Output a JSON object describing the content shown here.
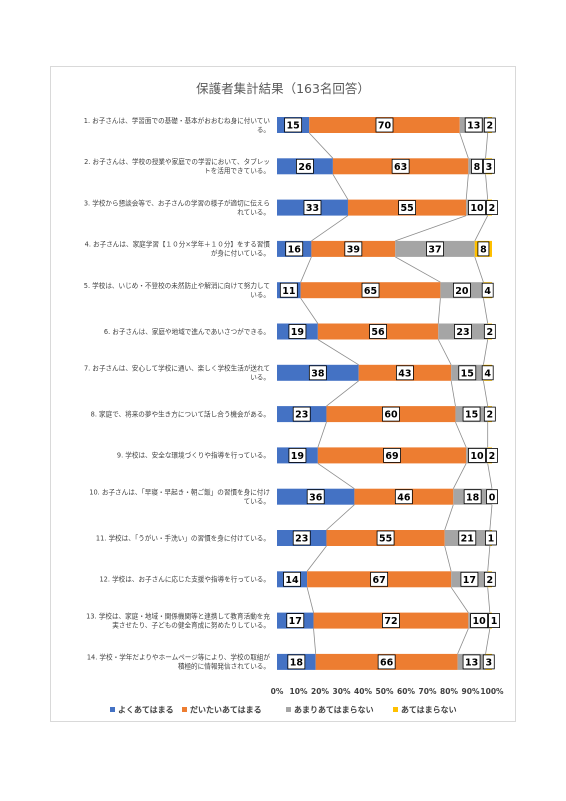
{
  "chart_data": {
    "type": "bar",
    "orientation": "horizontal",
    "stacked": "percent",
    "title": "保護者集計結果（163名回答）",
    "xlim": [
      0,
      100
    ],
    "x_ticks": [
      "0%",
      "10%",
      "20%",
      "30%",
      "40%",
      "50%",
      "60%",
      "70%",
      "80%",
      "90%",
      "100%"
    ],
    "legend_position": "bottom",
    "grid": false,
    "categories": [
      [
        "1. お子さんは、学習面での基礎・基本がおおむね身に付いてい",
        "る。"
      ],
      [
        "2. お子さんは、学校の授業や家庭での学習において、タブレッ",
        "トを活用できている。"
      ],
      [
        "3. 学校から懇談会等で、お子さんの学習の様子が適切に伝えら",
        "れている。"
      ],
      [
        "4. お子さんは、家庭学習【１０分×学年＋１０分】をする習慣",
        "が身に付いている。"
      ],
      [
        "5. 学校は、いじめ・不登校の未然防止や解消に向けて努力して",
        "いる。"
      ],
      [
        "6. お子さんは、家庭や地域で進んであいさつができる。"
      ],
      [
        "7. お子さんは、安心して学校に通い、楽しく学校生活が送れて",
        "いる。"
      ],
      [
        "8. 家庭で、将来の夢や生き方について話し合う機会がある。"
      ],
      [
        "9. 学校は、安全な環境づくりや指導を行っている。"
      ],
      [
        "10. お子さんは、「早寝・早起き・朝ご飯」の習慣を身に付け",
        "ている。"
      ],
      [
        "11. 学校は、「うがい・手洗い」の習慣を身に付けている。"
      ],
      [
        "12. 学校は、お子さんに応じた支援や指導を行っている。"
      ],
      [
        "13. 学校は、家庭・地域・関係機関等と連携して教育活動を充",
        "実させたり、子どもの健全育成に努めたりしている。"
      ],
      [
        "14. 学校・学年だよりやホームページ等により、学校の取組が",
        "積極的に情報発信されている。"
      ]
    ],
    "series": [
      {
        "name": "よくあてはまる",
        "color": "#4472c4",
        "values": [
          15,
          26,
          33,
          16,
          11,
          19,
          38,
          23,
          19,
          36,
          23,
          14,
          17,
          18
        ]
      },
      {
        "name": "だいたいあてはまる",
        "color": "#ed7d31",
        "values": [
          70,
          63,
          55,
          39,
          65,
          56,
          43,
          60,
          69,
          46,
          55,
          67,
          72,
          66
        ]
      },
      {
        "name": "あまりあてはまらない",
        "color": "#a5a5a5",
        "values": [
          13,
          8,
          10,
          37,
          20,
          23,
          15,
          15,
          10,
          18,
          21,
          17,
          10,
          13
        ]
      },
      {
        "name": "あてはまらない",
        "color": "#ffc000",
        "values": [
          2,
          3,
          2,
          8,
          4,
          2,
          4,
          2,
          2,
          0,
          1,
          2,
          1,
          3
        ]
      }
    ]
  }
}
